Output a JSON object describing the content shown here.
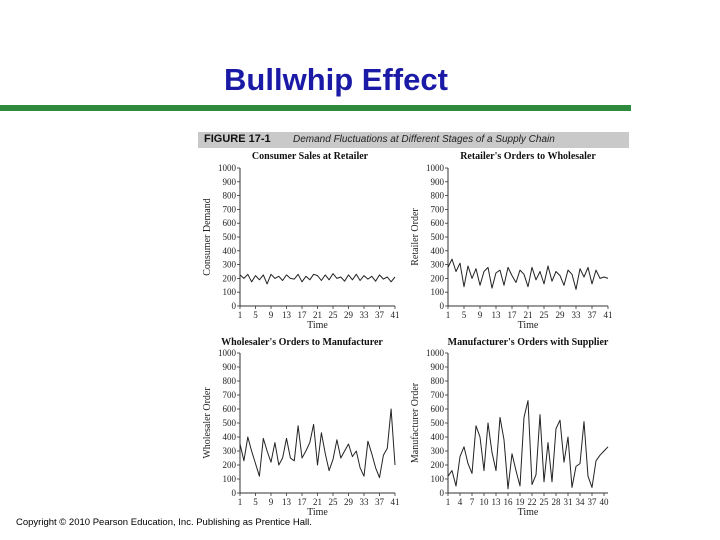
{
  "slide": {
    "title": "Bullwhip Effect",
    "copyright": "Copyright © 2010 Pearson Education, Inc. Publishing as Prentice Hall."
  },
  "figure": {
    "number": "FIGURE 17-1",
    "caption": "Demand Fluctuations at Different Stages of a Supply Chain"
  },
  "colors": {
    "title": "#1a1aa6",
    "rule": "#2e8b3d",
    "line": "#222222",
    "header_bg": "#c9c9c9"
  },
  "chart_data": [
    {
      "type": "line",
      "title": "Consumer Sales at Retailer",
      "xlabel": "Time",
      "ylabel": "Consumer Demand",
      "ylim": [
        0,
        1000
      ],
      "yticks": [
        0,
        100,
        200,
        300,
        400,
        500,
        600,
        700,
        800,
        900,
        1000
      ],
      "xtick_labels": [
        "1",
        "5",
        "9",
        "13",
        "17",
        "21",
        "25",
        "29",
        "33",
        "37",
        "41"
      ],
      "x": [
        1,
        2,
        3,
        4,
        5,
        6,
        7,
        8,
        9,
        10,
        11,
        12,
        13,
        14,
        15,
        16,
        17,
        18,
        19,
        20,
        21,
        22,
        23,
        24,
        25,
        26,
        27,
        28,
        29,
        30,
        31,
        32,
        33,
        34,
        35,
        36,
        37,
        38,
        39,
        40,
        41
      ],
      "series": [
        {
          "values": [
            225,
            200,
            230,
            175,
            220,
            190,
            225,
            160,
            230,
            200,
            215,
            185,
            225,
            200,
            195,
            230,
            175,
            215,
            190,
            230,
            220,
            185,
            225,
            190,
            235,
            200,
            210,
            180,
            225,
            190,
            230,
            185,
            220,
            195,
            215,
            180,
            225,
            195,
            210,
            175,
            210
          ]
        }
      ]
    },
    {
      "type": "line",
      "title": "Retailer's Orders to Wholesaler",
      "xlabel": "Time",
      "ylabel": "Retailer Order",
      "ylim": [
        0,
        1000
      ],
      "yticks": [
        0,
        100,
        200,
        300,
        400,
        500,
        600,
        700,
        800,
        900,
        1000
      ],
      "xtick_labels": [
        "1",
        "5",
        "9",
        "13",
        "17",
        "21",
        "25",
        "29",
        "33",
        "37",
        "41"
      ],
      "x": [
        1,
        2,
        3,
        4,
        5,
        6,
        7,
        8,
        9,
        10,
        11,
        12,
        13,
        14,
        15,
        16,
        17,
        18,
        19,
        20,
        21,
        22,
        23,
        24,
        25,
        26,
        27,
        28,
        29,
        30,
        31,
        32,
        33,
        34,
        35,
        36,
        37,
        38,
        39,
        40,
        41
      ],
      "series": [
        {
          "values": [
            280,
            340,
            250,
            310,
            140,
            290,
            200,
            270,
            150,
            250,
            280,
            130,
            240,
            260,
            150,
            280,
            220,
            170,
            260,
            230,
            140,
            280,
            190,
            250,
            160,
            290,
            180,
            250,
            220,
            150,
            260,
            230,
            120,
            270,
            210,
            280,
            160,
            260,
            200,
            210,
            200
          ]
        }
      ]
    },
    {
      "type": "line",
      "title": "Wholesaler's Orders to Manufacturer",
      "xlabel": "Time",
      "ylabel": "Wholesaler Order",
      "ylim": [
        0,
        1000
      ],
      "yticks": [
        0,
        100,
        200,
        300,
        400,
        500,
        600,
        700,
        800,
        900,
        1000
      ],
      "xtick_labels": [
        "1",
        "5",
        "9",
        "13",
        "17",
        "21",
        "25",
        "29",
        "33",
        "37",
        "41"
      ],
      "x": [
        1,
        2,
        3,
        4,
        5,
        6,
        7,
        8,
        9,
        10,
        11,
        12,
        13,
        14,
        15,
        16,
        17,
        18,
        19,
        20,
        21,
        22,
        23,
        24,
        25,
        26,
        27,
        28,
        29,
        30,
        31,
        32,
        33,
        34,
        35,
        36,
        37,
        38,
        39,
        40,
        41
      ],
      "series": [
        {
          "values": [
            350,
            230,
            400,
            300,
            210,
            120,
            390,
            300,
            220,
            360,
            200,
            250,
            390,
            250,
            230,
            480,
            250,
            300,
            360,
            490,
            200,
            430,
            280,
            160,
            240,
            380,
            250,
            300,
            350,
            260,
            300,
            180,
            120,
            370,
            280,
            180,
            110,
            270,
            320,
            600,
            200
          ]
        }
      ]
    },
    {
      "type": "line",
      "title": "Manufacturer's Orders with Supplier",
      "xlabel": "Time",
      "ylabel": "Manufacturer Order",
      "ylim": [
        0,
        1000
      ],
      "yticks": [
        0,
        100,
        200,
        300,
        400,
        500,
        600,
        700,
        800,
        900,
        1000
      ],
      "xtick_labels": [
        "1",
        "4",
        "7",
        "10",
        "13",
        "16",
        "19",
        "22",
        "25",
        "28",
        "31",
        "34",
        "37",
        "40"
      ],
      "x": [
        1,
        2,
        3,
        4,
        5,
        6,
        7,
        8,
        9,
        10,
        11,
        12,
        13,
        14,
        15,
        16,
        17,
        18,
        19,
        20,
        21,
        22,
        23,
        24,
        25,
        26,
        27,
        28,
        29,
        30,
        31,
        32,
        33,
        34,
        35,
        36,
        37,
        38,
        39,
        40,
        41
      ],
      "series": [
        {
          "values": [
            120,
            160,
            50,
            260,
            330,
            210,
            140,
            480,
            400,
            160,
            500,
            290,
            160,
            540,
            380,
            30,
            280,
            160,
            50,
            540,
            660,
            60,
            130,
            560,
            80,
            360,
            80,
            460,
            520,
            220,
            400,
            40,
            190,
            210,
            510,
            120,
            40,
            230,
            270,
            300,
            330
          ]
        }
      ]
    }
  ]
}
